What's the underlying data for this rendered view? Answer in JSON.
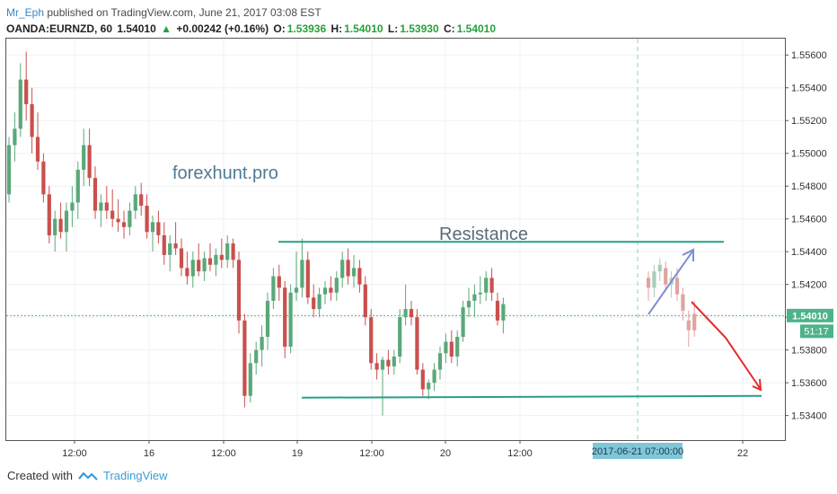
{
  "header": {
    "user": "Mr_Eph",
    "published": "published on TradingView.com, June 21, 2017 03:08 EST"
  },
  "symbol_line": {
    "symbol": "OANDA:EURNZD, 60",
    "last": "1.54010",
    "change_icon": "up-triangle-icon",
    "change": "+0.00242 (+0.16%)",
    "o_label": "O:",
    "o_value": "1.53936",
    "h_label": "H:",
    "h_value": "1.54010",
    "l_label": "L:",
    "l_value": "1.53930",
    "c_label": "C:",
    "c_value": "1.54010"
  },
  "watermark": "forexhunt.pro",
  "annotation": "Resistance",
  "price_tag": "1.54010",
  "countdown_tag": "51:17",
  "crosshair_time_label": "2017-06-21 07:00:00",
  "footer": {
    "created_with": "Created with",
    "brand": "TradingView"
  },
  "colors": {
    "up": "#5aa87a",
    "down": "#c9504d",
    "line": "#26a087",
    "arrow_up": "#7f8ed0",
    "arrow_down": "#e52b2b",
    "tag": "#4db38a"
  },
  "chart_data": {
    "type": "candlestick",
    "title": "OANDA:EURNZD, 60",
    "ylim": [
      1.5325,
      1.557
    ],
    "y_ticks": [
      "1.55600",
      "1.55400",
      "1.55200",
      "1.55000",
      "1.54800",
      "1.54600",
      "1.54400",
      "1.54200",
      "1.54000",
      "1.53800",
      "1.53600",
      "1.53400"
    ],
    "x_ticks": [
      "12:00",
      "16",
      "12:00",
      "19",
      "12:00",
      "20",
      "12:00",
      "22"
    ],
    "current_price": 1.5401,
    "resistance_level": 1.5446,
    "support_level": 1.5352,
    "candles": [
      [
        1.5475,
        1.551,
        1.547,
        1.5505
      ],
      [
        1.5505,
        1.5525,
        1.5495,
        1.5515
      ],
      [
        1.5515,
        1.5555,
        1.551,
        1.5545
      ],
      [
        1.5545,
        1.5562,
        1.552,
        1.553
      ],
      [
        1.553,
        1.554,
        1.55,
        1.551
      ],
      [
        1.551,
        1.5525,
        1.549,
        1.5495
      ],
      [
        1.5495,
        1.55,
        1.547,
        1.5475
      ],
      [
        1.5475,
        1.548,
        1.5445,
        1.545
      ],
      [
        1.545,
        1.5465,
        1.544,
        1.546
      ],
      [
        1.546,
        1.547,
        1.5448,
        1.5452
      ],
      [
        1.5452,
        1.547,
        1.544,
        1.5465
      ],
      [
        1.5465,
        1.548,
        1.5455,
        1.547
      ],
      [
        1.547,
        1.5495,
        1.546,
        1.549
      ],
      [
        1.549,
        1.5515,
        1.548,
        1.5505
      ],
      [
        1.5505,
        1.5515,
        1.548,
        1.5485
      ],
      [
        1.5485,
        1.5492,
        1.546,
        1.5465
      ],
      [
        1.5465,
        1.5475,
        1.5455,
        1.547
      ],
      [
        1.547,
        1.548,
        1.546,
        1.5465
      ],
      [
        1.5465,
        1.5478,
        1.5455,
        1.546
      ],
      [
        1.546,
        1.5472,
        1.5452,
        1.5458
      ],
      [
        1.5458,
        1.5465,
        1.5448,
        1.5455
      ],
      [
        1.5455,
        1.547,
        1.545,
        1.5465
      ],
      [
        1.5465,
        1.548,
        1.546,
        1.5475
      ],
      [
        1.5475,
        1.5482,
        1.5462,
        1.5468
      ],
      [
        1.5468,
        1.5475,
        1.5448,
        1.5452
      ],
      [
        1.5452,
        1.5462,
        1.544,
        1.5458
      ],
      [
        1.5458,
        1.5465,
        1.5445,
        1.545
      ],
      [
        1.545,
        1.5458,
        1.5432,
        1.5438
      ],
      [
        1.5438,
        1.545,
        1.5428,
        1.5445
      ],
      [
        1.5445,
        1.5458,
        1.5438,
        1.5442
      ],
      [
        1.5442,
        1.5448,
        1.5425,
        1.543
      ],
      [
        1.543,
        1.544,
        1.542,
        1.5425
      ],
      [
        1.5425,
        1.544,
        1.5418,
        1.5435
      ],
      [
        1.5435,
        1.5445,
        1.5425,
        1.5428
      ],
      [
        1.5428,
        1.544,
        1.5422,
        1.5436
      ],
      [
        1.5436,
        1.5445,
        1.5428,
        1.5432
      ],
      [
        1.5432,
        1.5442,
        1.5425,
        1.5438
      ],
      [
        1.5438,
        1.5448,
        1.543,
        1.5435
      ],
      [
        1.5435,
        1.545,
        1.543,
        1.5445
      ],
      [
        1.5445,
        1.5448,
        1.543,
        1.5435
      ],
      [
        1.5435,
        1.544,
        1.539,
        1.5398
      ],
      [
        1.5398,
        1.5402,
        1.5345,
        1.5352
      ],
      [
        1.5352,
        1.5378,
        1.5348,
        1.5372
      ],
      [
        1.5372,
        1.5385,
        1.5365,
        1.538
      ],
      [
        1.538,
        1.5395,
        1.537,
        1.5388
      ],
      [
        1.5388,
        1.5415,
        1.538,
        1.541
      ],
      [
        1.541,
        1.543,
        1.5405,
        1.5425
      ],
      [
        1.5425,
        1.5432,
        1.541,
        1.5418
      ],
      [
        1.5418,
        1.5422,
        1.5375,
        1.5382
      ],
      [
        1.5382,
        1.542,
        1.5378,
        1.5415
      ],
      [
        1.5415,
        1.544,
        1.541,
        1.5418
      ],
      [
        1.5418,
        1.5448,
        1.5412,
        1.5435
      ],
      [
        1.5435,
        1.544,
        1.5408,
        1.5412
      ],
      [
        1.5412,
        1.542,
        1.54,
        1.5405
      ],
      [
        1.5405,
        1.5418,
        1.54,
        1.5414
      ],
      [
        1.5414,
        1.5422,
        1.5408,
        1.5418
      ],
      [
        1.5418,
        1.5425,
        1.541,
        1.5415
      ],
      [
        1.5415,
        1.5428,
        1.541,
        1.5424
      ],
      [
        1.5424,
        1.544,
        1.5418,
        1.5435
      ],
      [
        1.5435,
        1.5442,
        1.542,
        1.5425
      ],
      [
        1.5425,
        1.5438,
        1.5418,
        1.543
      ],
      [
        1.543,
        1.5435,
        1.5415,
        1.542
      ],
      [
        1.542,
        1.5425,
        1.5395,
        1.54
      ],
      [
        1.54,
        1.5405,
        1.5368,
        1.5372
      ],
      [
        1.5372,
        1.5378,
        1.5362,
        1.5368
      ],
      [
        1.5368,
        1.5376,
        1.534,
        1.5374
      ],
      [
        1.5374,
        1.538,
        1.5365,
        1.537
      ],
      [
        1.537,
        1.538,
        1.5365,
        1.5376
      ],
      [
        1.5376,
        1.5405,
        1.5372,
        1.54
      ],
      [
        1.54,
        1.542,
        1.5395,
        1.5405
      ],
      [
        1.5405,
        1.541,
        1.5395,
        1.54
      ],
      [
        1.54,
        1.5405,
        1.5365,
        1.5368
      ],
      [
        1.5368,
        1.5372,
        1.5352,
        1.5356
      ],
      [
        1.5356,
        1.5362,
        1.535,
        1.536
      ],
      [
        1.536,
        1.5372,
        1.5355,
        1.5368
      ],
      [
        1.5368,
        1.5382,
        1.5362,
        1.5378
      ],
      [
        1.5378,
        1.539,
        1.5372,
        1.5385
      ],
      [
        1.5385,
        1.5392,
        1.5372,
        1.5376
      ],
      [
        1.5376,
        1.5392,
        1.537,
        1.5388
      ],
      [
        1.5388,
        1.541,
        1.5385,
        1.5406
      ],
      [
        1.5406,
        1.5418,
        1.54,
        1.541
      ],
      [
        1.541,
        1.542,
        1.54,
        1.5414
      ],
      [
        1.5414,
        1.5425,
        1.5408,
        1.5415
      ],
      [
        1.5415,
        1.5428,
        1.541,
        1.5424
      ],
      [
        1.5424,
        1.543,
        1.541,
        1.5415
      ],
      [
        1.541,
        1.5415,
        1.5395,
        1.5398
      ],
      [
        1.5398,
        1.5412,
        1.539,
        1.5408
      ]
    ],
    "projection_candles": [
      [
        1.5424,
        1.5428,
        1.541,
        1.5418
      ],
      [
        1.5418,
        1.5432,
        1.5412,
        1.5428
      ],
      [
        1.5428,
        1.5436,
        1.5422,
        1.5432
      ],
      [
        1.543,
        1.5434,
        1.5416,
        1.542
      ],
      [
        1.542,
        1.5428,
        1.5412,
        1.5424
      ],
      [
        1.5424,
        1.543,
        1.541,
        1.5414
      ],
      [
        1.5414,
        1.5418,
        1.5398,
        1.5404
      ],
      [
        1.5398,
        1.5404,
        1.5382,
        1.5392
      ],
      [
        1.5402,
        1.541,
        1.5388,
        1.5392
      ]
    ]
  }
}
